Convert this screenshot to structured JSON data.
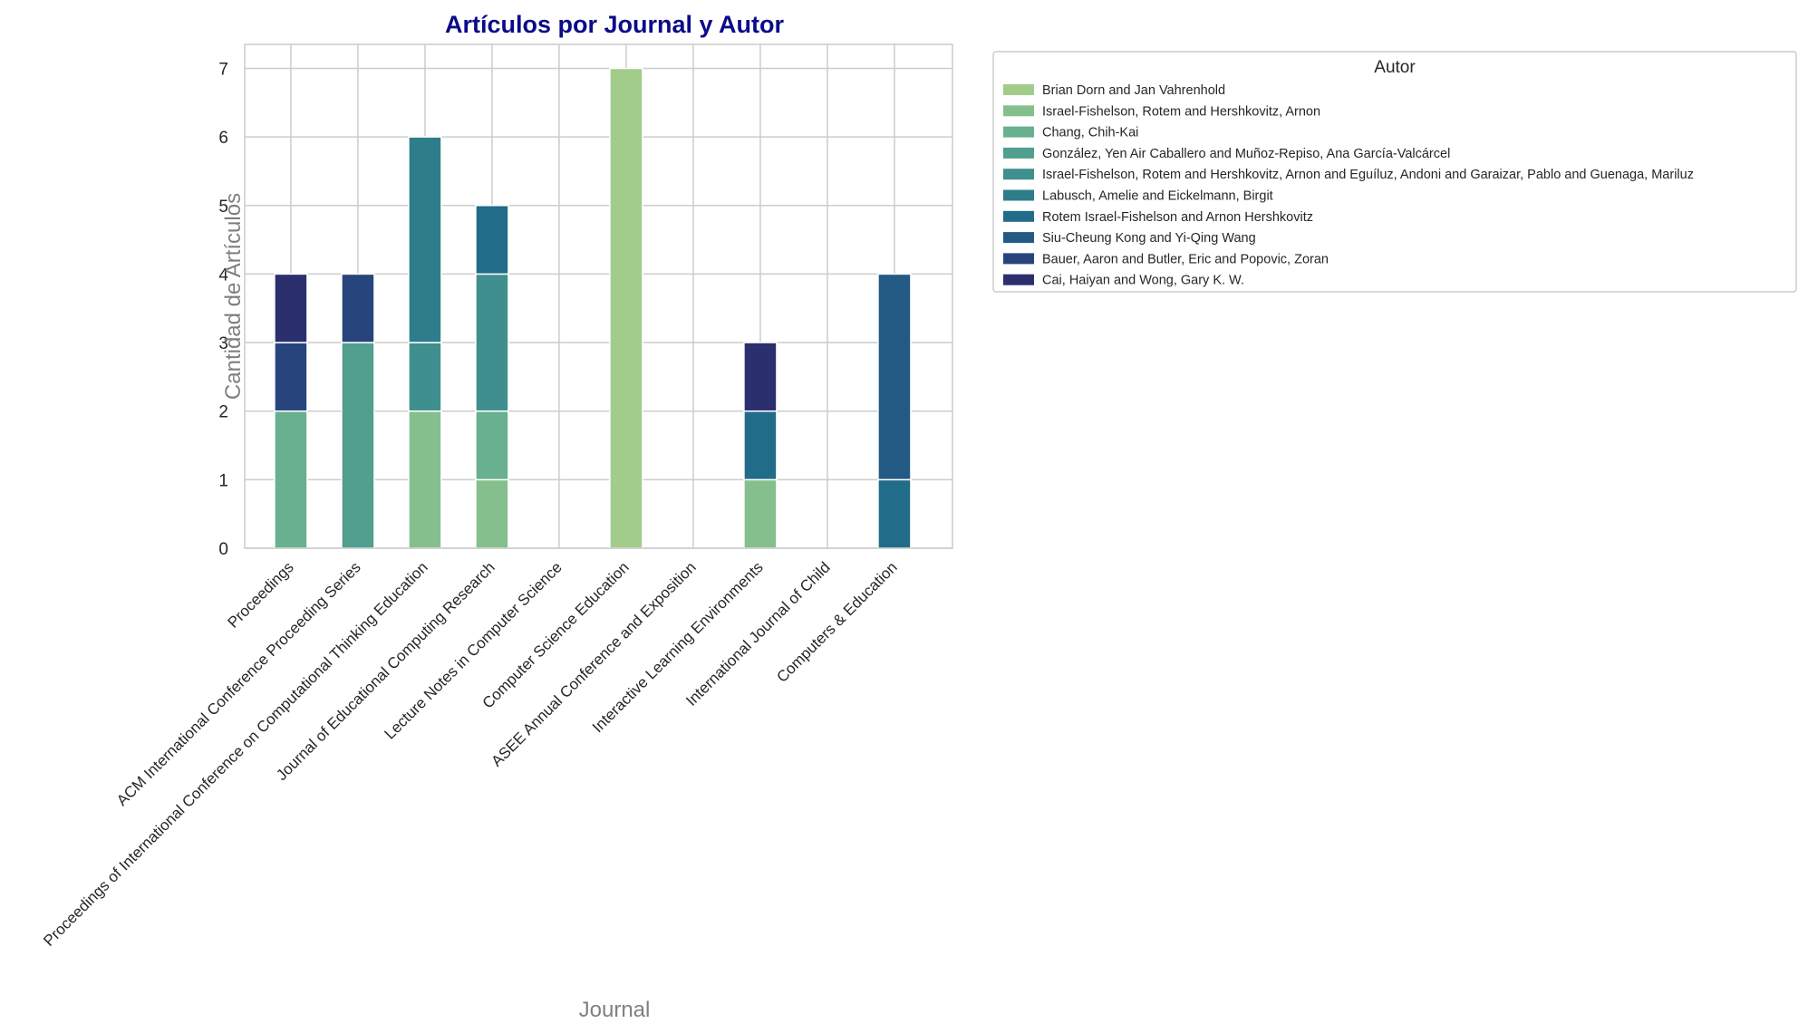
{
  "chart_data": {
    "type": "bar",
    "stacked": true,
    "title": "Artículos por Journal y Autor",
    "xlabel": "Journal",
    "ylabel": "Cantidad de Artículos",
    "ylim": [
      0,
      7.35
    ],
    "yticks": [
      0,
      1,
      2,
      3,
      4,
      5,
      6,
      7
    ],
    "grid": true,
    "legend_title": "Autor",
    "legend_position": "outside-right",
    "categories": [
      "Proceedings",
      "ACM International Conference Proceeding Series",
      "Proceedings of International Conference on Computational Thinking Education",
      "Journal of Educational Computing Research",
      "Lecture Notes in Computer Science",
      "Computer Science Education",
      "ASEE Annual Conference and Exposition",
      "Interactive Learning Environments",
      "International Journal of Child",
      "Computers & Education"
    ],
    "series": [
      {
        "name": "Brian Dorn and Jan Vahrenhold",
        "color": "#a1cc8a",
        "values": [
          0,
          0,
          0,
          0,
          0,
          7,
          0,
          0,
          0,
          0
        ]
      },
      {
        "name": "Israel-Fishelson, Rotem and Hershkovitz, Arnon",
        "color": "#86bf8e",
        "values": [
          0,
          0,
          2,
          1,
          0,
          0,
          0,
          1,
          0,
          0
        ]
      },
      {
        "name": "Chang, Chih-Kai",
        "color": "#68b08f",
        "values": [
          2,
          0,
          0,
          1,
          0,
          0,
          0,
          0,
          0,
          0
        ]
      },
      {
        "name": "González, Yen Air Caballero and Muñoz-Repiso, Ana García-Valcárcel",
        "color": "#509f8f",
        "values": [
          0,
          3,
          0,
          0,
          0,
          0,
          0,
          0,
          0,
          0
        ]
      },
      {
        "name": "Israel-Fishelson, Rotem and Hershkovitz, Arnon and Eguíluz, Andoni and Garaizar, Pablo and Guenaga, Mariluz",
        "color": "#3e8f8e",
        "values": [
          0,
          0,
          1,
          2,
          0,
          0,
          0,
          0,
          0,
          0
        ]
      },
      {
        "name": "Labusch, Amelie and Eickelmann, Birgit",
        "color": "#2e7d8b",
        "values": [
          0,
          0,
          3,
          0,
          0,
          0,
          0,
          0,
          0,
          0
        ]
      },
      {
        "name": "Rotem Israel-Fishelson and Arnon Hershkovitz",
        "color": "#216c88",
        "values": [
          0,
          0,
          0,
          1,
          0,
          0,
          0,
          1,
          0,
          1
        ]
      },
      {
        "name": "Siu-Cheung Kong and Yi-Qing Wang",
        "color": "#225a84",
        "values": [
          0,
          0,
          0,
          0,
          0,
          0,
          0,
          0,
          0,
          3
        ]
      },
      {
        "name": "Bauer, Aaron and Butler, Eric and Popovic, Zoran",
        "color": "#27447c",
        "values": [
          1,
          1,
          0,
          0,
          0,
          0,
          0,
          0,
          0,
          0
        ]
      },
      {
        "name": "Cai, Haiyan and Wong, Gary K. W.",
        "color": "#2c2f6e",
        "values": [
          1,
          0,
          0,
          0,
          0,
          0,
          0,
          1,
          0,
          0
        ]
      }
    ]
  }
}
